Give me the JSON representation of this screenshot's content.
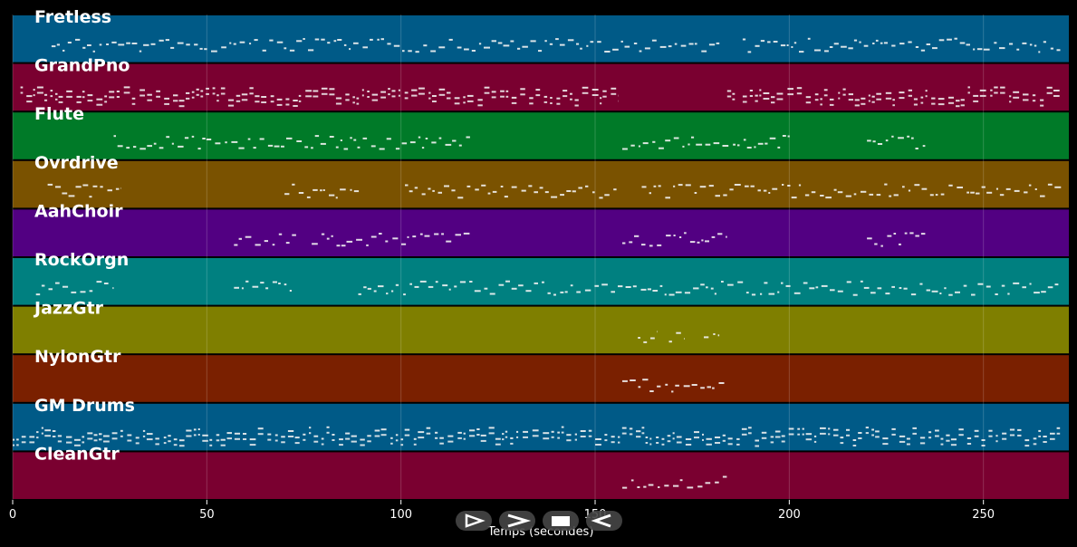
{
  "chart_data": {
    "type": "piano-roll",
    "xlabel": "Temps (secondes)",
    "xlim": [
      0,
      272
    ],
    "xticks": [
      0,
      50,
      100,
      150,
      200,
      250
    ],
    "grid": true,
    "tracks": [
      {
        "name": "Fretless",
        "color": "#005a87",
        "segments": [
          [
            10,
            182
          ],
          [
            188,
            270
          ]
        ]
      },
      {
        "name": "GrandPno",
        "color": "#7a0030",
        "segments": [
          [
            2,
            156
          ],
          [
            184,
            186
          ],
          [
            188,
            270
          ]
        ]
      },
      {
        "name": "Flute",
        "color": "#007a28",
        "segments": [
          [
            26,
            118
          ],
          [
            157,
            201
          ],
          [
            220,
            235
          ]
        ]
      },
      {
        "name": "Ovrdrive",
        "color": "#7a5200",
        "segments": [
          [
            9,
            28
          ],
          [
            70,
            90
          ],
          [
            101,
            156
          ],
          [
            162,
            270
          ]
        ]
      },
      {
        "name": "AahChoir",
        "color": "#520082",
        "segments": [
          [
            57,
            73
          ],
          [
            77,
            118
          ],
          [
            157,
            184
          ],
          [
            220,
            235
          ]
        ]
      },
      {
        "name": "RockOrgn",
        "color": "#008080",
        "segments": [
          [
            6,
            26
          ],
          [
            57,
            73
          ],
          [
            89,
            270
          ]
        ]
      },
      {
        "name": "JazzGtr",
        "color": "#7f7f00",
        "segments": [
          [
            161,
            166
          ],
          [
            169,
            173
          ],
          [
            178,
            182
          ]
        ]
      },
      {
        "name": "NylonGtr",
        "color": "#7a2000",
        "segments": [
          [
            157,
            184
          ]
        ]
      },
      {
        "name": "GM Drums",
        "color": "#005a87",
        "segments": [
          [
            0,
            270
          ]
        ]
      },
      {
        "name": "CleanGtr",
        "color": "#7a0030",
        "segments": [
          [
            157,
            184
          ]
        ]
      }
    ]
  },
  "controls": [
    {
      "name": "play-forward",
      "icon": "play-outline-icon"
    },
    {
      "name": "next",
      "icon": "chevron-right-icon"
    },
    {
      "name": "stop",
      "icon": "stop-icon"
    },
    {
      "name": "play-backward",
      "icon": "play-reverse-icon"
    }
  ]
}
